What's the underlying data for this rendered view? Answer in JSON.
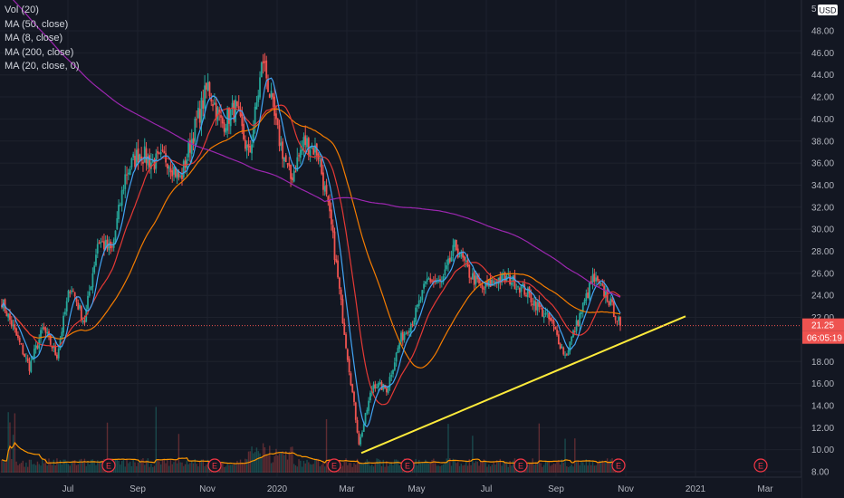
{
  "indicators": [
    "Vol (20)",
    "MA (50, close)",
    "MA (8, close)",
    "MA (200, close)",
    "MA (20, close, 0)"
  ],
  "currency": "USD",
  "scale_top_label": "5",
  "last_price": "21.25",
  "countdown": "06:05:19",
  "colors": {
    "background": "#131722",
    "grid": "#1e222d",
    "up": "#26a69a",
    "down": "#ef5350",
    "ma50": "#f57c00",
    "ma8": "#42a5f5",
    "ma200": "#9c27b0",
    "ma20": "#e53935",
    "trendline": "#ffeb3b",
    "vol_ma": "#ff9800",
    "earnings": "#f23645"
  },
  "chart_data": {
    "type": "candlestick",
    "x_ticks": [
      "Jul",
      "Sep",
      "Nov",
      "2020",
      "Mar",
      "May",
      "Jul",
      "Sep",
      "Nov",
      "2021",
      "Mar"
    ],
    "y_ticks": [
      "48.00",
      "46.00",
      "44.00",
      "42.00",
      "40.00",
      "38.00",
      "36.00",
      "34.00",
      "32.00",
      "30.00",
      "28.00",
      "26.00",
      "24.00",
      "22.00",
      "20.00",
      "18.00",
      "16.00",
      "14.00",
      "12.00",
      "10.00",
      "8.00"
    ],
    "ylim": [
      7.5,
      49.5
    ],
    "earnings_markers": [
      {
        "label": "E",
        "at": "Aug 2019"
      },
      {
        "label": "E",
        "at": "Nov 2019"
      },
      {
        "label": "E",
        "at": "Feb 2020"
      },
      {
        "label": "E",
        "at": "May 2020"
      },
      {
        "label": "E",
        "at": "Aug 2020"
      },
      {
        "label": "E",
        "at": "Nov 2020"
      },
      {
        "label": "E",
        "at": "Feb 2021"
      }
    ],
    "trendline": {
      "from": {
        "date": "Mar 2020",
        "price": 9.7
      },
      "to": {
        "date": "Dec 2020",
        "price": 22.1
      }
    },
    "price_series_anchors": [
      [
        "May 2019",
        23.5
      ],
      [
        "Jun 2019",
        20.5
      ],
      [
        "Jun 2019",
        17.5
      ],
      [
        "Jul 2019",
        21.0
      ],
      [
        "Jul 2019",
        18.5
      ],
      [
        "Aug 2019",
        25.0
      ],
      [
        "Aug 2019",
        21.5
      ],
      [
        "Aug 2019",
        29.0
      ],
      [
        "Sep 2019",
        28.0
      ],
      [
        "Sep 2019",
        35.0
      ],
      [
        "Oct 2019",
        37.0
      ],
      [
        "Oct 2019",
        36.0
      ],
      [
        "Nov 2019",
        36.5
      ],
      [
        "Nov 2019",
        34.5
      ],
      [
        "Dec 2019",
        39.0
      ],
      [
        "Dec 2019",
        43.0
      ],
      [
        "Jan 2020",
        39.5
      ],
      [
        "Jan 2020",
        41.0
      ],
      [
        "Jan 2020",
        36.5
      ],
      [
        "Feb 2020",
        45.5
      ],
      [
        "Feb 2020",
        39.0
      ],
      [
        "Feb 2020",
        34.5
      ],
      [
        "Feb 2020",
        38.0
      ],
      [
        "Mar 2020",
        37.0
      ],
      [
        "Mar 2020",
        30.0
      ],
      [
        "Mar 2020",
        20.0
      ],
      [
        "Mar 2020",
        10.5
      ],
      [
        "Apr 2020",
        16.0
      ],
      [
        "Apr 2020",
        15.5
      ],
      [
        "Apr 2020",
        20.0
      ],
      [
        "May 2020",
        22.0
      ],
      [
        "May 2020",
        25.5
      ],
      [
        "Jun 2020",
        25.0
      ],
      [
        "Jun 2020",
        28.5
      ],
      [
        "Jun 2020",
        26.0
      ],
      [
        "Jul 2020",
        24.5
      ],
      [
        "Jul 2020",
        25.5
      ],
      [
        "Aug 2020",
        25.5
      ],
      [
        "Aug 2020",
        24.5
      ],
      [
        "Sep 2020",
        23.0
      ],
      [
        "Sep 2020",
        21.5
      ],
      [
        "Oct 2020",
        18.5
      ],
      [
        "Oct 2020",
        22.0
      ],
      [
        "Oct 2020",
        25.5
      ],
      [
        "Nov 2020",
        24.0
      ],
      [
        "Nov 2020",
        21.25
      ]
    ]
  }
}
